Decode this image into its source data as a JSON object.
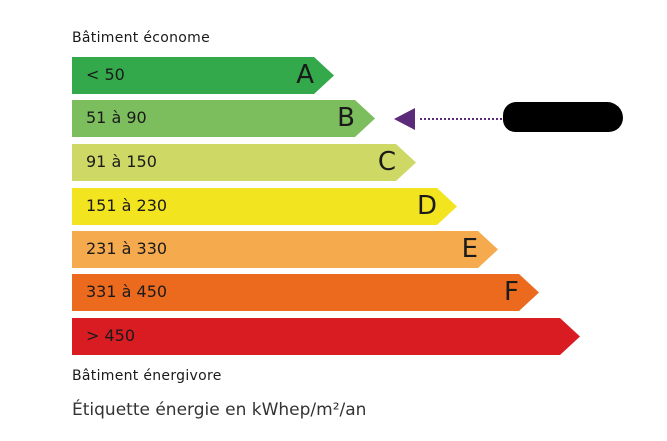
{
  "top_label": "Bâtiment économe",
  "bottom_label": "Bâtiment énergivore",
  "unit_label": "Étiquette énergie en kWhep/m²/an",
  "classes": [
    {
      "range": "< 50",
      "letter": "A",
      "color": "#33a94b"
    },
    {
      "range": "51 à 90",
      "letter": "B",
      "color": "#7cbd5e"
    },
    {
      "range": "91 à 150",
      "letter": "C",
      "color": "#cdd964"
    },
    {
      "range": "151 à 230",
      "letter": "D",
      "color": "#f2e41f"
    },
    {
      "range": "231 à 330",
      "letter": "E",
      "color": "#f5aa4e"
    },
    {
      "range": "331 à 450",
      "letter": "F",
      "color": "#ec6a1e"
    },
    {
      "range": "> 450",
      "letter": "",
      "color": "#d81c22"
    }
  ],
  "indicator": {
    "class": "B",
    "color": "#5b2a7b",
    "label_redacted": true
  }
}
